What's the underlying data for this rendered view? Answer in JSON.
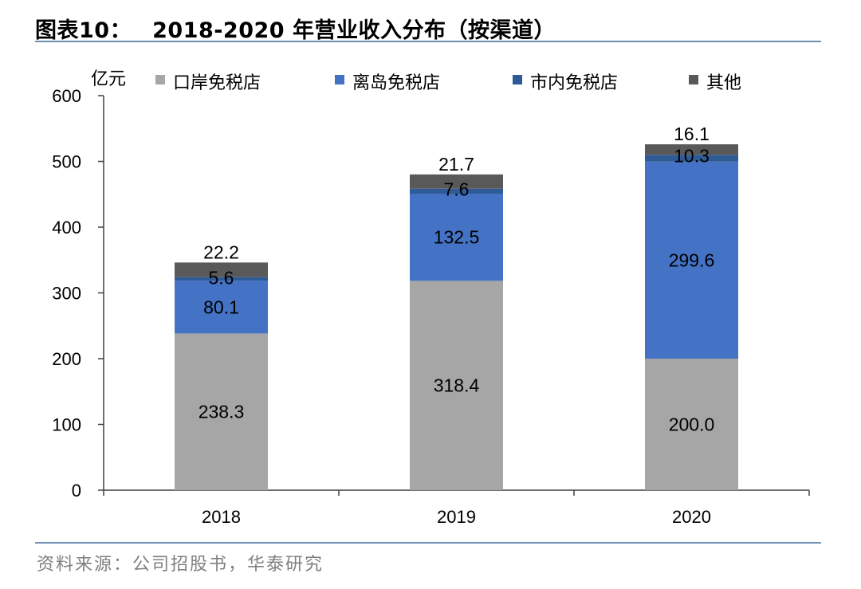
{
  "title": {
    "prefix": "图表10：",
    "text": "2018-2020 年营业收入分布（按渠道）"
  },
  "source": "资料来源：公司招股书，华泰研究",
  "chart_data": {
    "type": "bar",
    "stacked": true,
    "categories": [
      "2018",
      "2019",
      "2020"
    ],
    "ylabel": "亿元",
    "ylim": [
      0,
      600
    ],
    "yticks": [
      0,
      100,
      200,
      300,
      400,
      500,
      600
    ],
    "legend_position": "top",
    "grid": false,
    "series": [
      {
        "name": "口岸免税店",
        "values": [
          238.3,
          318.4,
          200.0
        ],
        "labels": [
          "238.3",
          "318.4",
          "200.0"
        ],
        "color": "#a6a6a6"
      },
      {
        "name": "离岛免税店",
        "values": [
          80.1,
          132.5,
          299.6
        ],
        "labels": [
          "80.1",
          "132.5",
          "299.6"
        ],
        "color": "#4472c4"
      },
      {
        "name": "市内免税店",
        "values": [
          5.6,
          7.6,
          10.3
        ],
        "labels": [
          "5.6",
          "7.6",
          "10.3"
        ],
        "color": "#2e5a96"
      },
      {
        "name": "其他",
        "values": [
          22.2,
          21.7,
          16.1
        ],
        "labels": [
          "22.2",
          "21.7",
          "16.1"
        ],
        "color": "#595959"
      }
    ]
  }
}
